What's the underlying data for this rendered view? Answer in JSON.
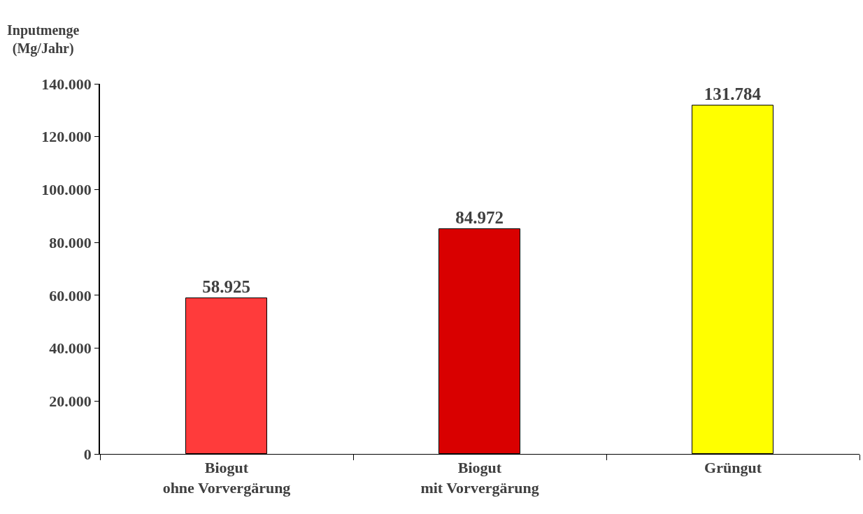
{
  "chart_data": {
    "type": "bar",
    "ylabel": "Inputmenge\n(Mg/Jahr)",
    "categories": [
      "Biogut\nohne Vorvergärung",
      "Biogut\nmit Vorvergärung",
      "Grüngut"
    ],
    "values": [
      58925,
      84972,
      131784
    ],
    "value_labels": [
      "58.925",
      "84.972",
      "131.784"
    ],
    "colors": [
      "#ff3b3b",
      "#d90000",
      "#ffff00"
    ],
    "ylim": [
      0,
      140000
    ],
    "yticks": [
      {
        "value": 0,
        "label": "0"
      },
      {
        "value": 20000,
        "label": "20.000"
      },
      {
        "value": 40000,
        "label": "40.000"
      },
      {
        "value": 60000,
        "label": "60.000"
      },
      {
        "value": 80000,
        "label": "80.000"
      },
      {
        "value": 100000,
        "label": "100.000"
      },
      {
        "value": 120000,
        "label": "120.000"
      },
      {
        "value": 140000,
        "label": "140.000"
      }
    ]
  }
}
